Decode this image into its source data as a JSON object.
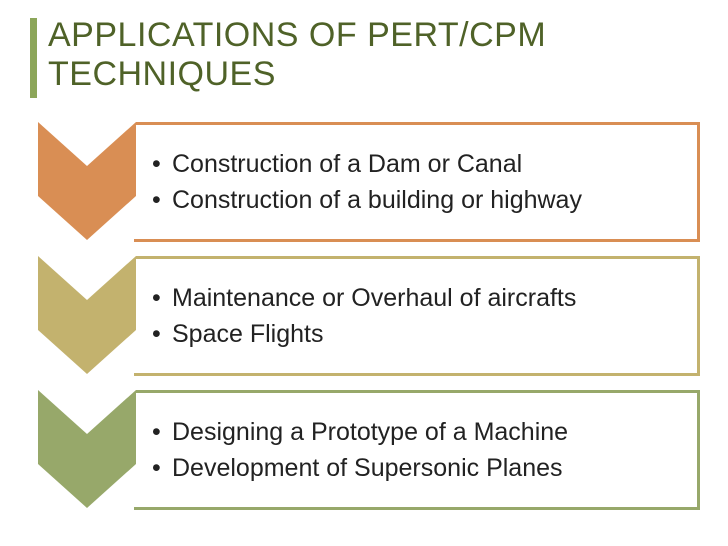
{
  "accent_bar_color": "#8ca65a",
  "title": {
    "text": "APPLICATIONS OF PERT/CPM TECHNIQUES",
    "color": "#4f6228"
  },
  "rows": [
    {
      "color": "#d98e54",
      "items": [
        "Construction of a Dam or Canal",
        "Construction of a building or highway"
      ]
    },
    {
      "color": "#c3b26e",
      "items": [
        "Maintenance or Overhaul of aircrafts",
        "Space Flights"
      ]
    },
    {
      "color": "#97a86a",
      "items": [
        "Designing a Prototype of a Machine",
        "Development of Supersonic Planes"
      ]
    }
  ]
}
